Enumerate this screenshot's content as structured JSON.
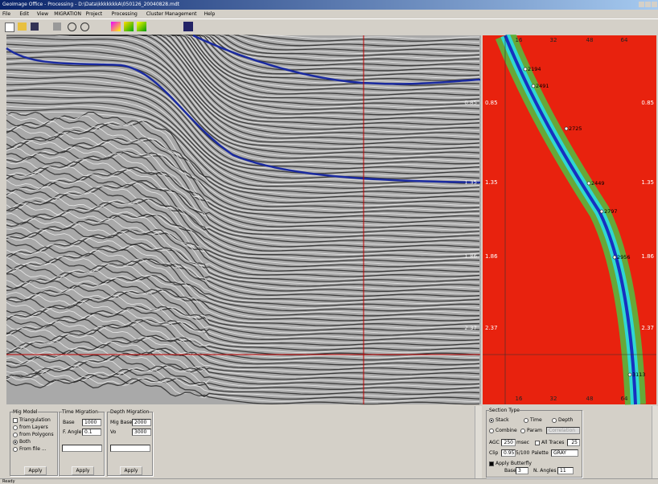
{
  "window": {
    "title": "GeoImage Office - Processing - D:\\Data\\kkkkkkkA\\050126_20040828.mdt"
  },
  "menu": [
    "File",
    "Edit",
    "View",
    "MIGRATION",
    "Project",
    "Processing",
    "Cluster Management",
    "Help"
  ],
  "seismic": {
    "time_labels": [
      "0.85",
      "1.35",
      "1.86",
      "2.37"
    ]
  },
  "velocity": {
    "top_ticks": [
      "16",
      "32",
      "48",
      "64"
    ],
    "bottom_ticks": [
      "16",
      "32",
      "48",
      "64"
    ],
    "time_labels": [
      "0.85",
      "1.35",
      "1.86",
      "2.37"
    ],
    "picks": [
      "2194",
      "2491",
      "2725",
      "2449",
      "2797",
      "2956",
      "3113"
    ]
  },
  "mig_model": {
    "title": "Mig Model",
    "options": [
      "Triangulation",
      "from Layers",
      "from Polygons",
      "Both",
      "From file ..."
    ],
    "button": "Apply"
  },
  "time_migration": {
    "title": "Time Migration",
    "base_label": "Base",
    "base": "1000",
    "angle_label": "F. Angle",
    "angle": "0.1",
    "button": "Apply"
  },
  "depth_migration": {
    "title": "Depth Migration",
    "base_label": "Mig Base",
    "base": "2000",
    "vo_label": "Vo",
    "vo": "3000",
    "button": "Apply"
  },
  "section_type": {
    "title": "Section Type",
    "stack": "Stack",
    "time": "Time",
    "depth": "Depth",
    "combine": "Combine",
    "param": "Param",
    "correlation": "Correlation",
    "agc_label": "AGC",
    "agc": "250",
    "agc_unit": "msec",
    "all_traces": "All Traces",
    "traces": "25",
    "clip_label": "Clip",
    "clip": "0.95",
    "clip_ratio": "5/100",
    "palette_label": "Palette",
    "palette": "GRAY",
    "butterfly": "Apply Butterfly",
    "base_label": "Base",
    "base": "3",
    "angles_label": "N. Angles",
    "angles": "11"
  },
  "status": "Ready"
}
